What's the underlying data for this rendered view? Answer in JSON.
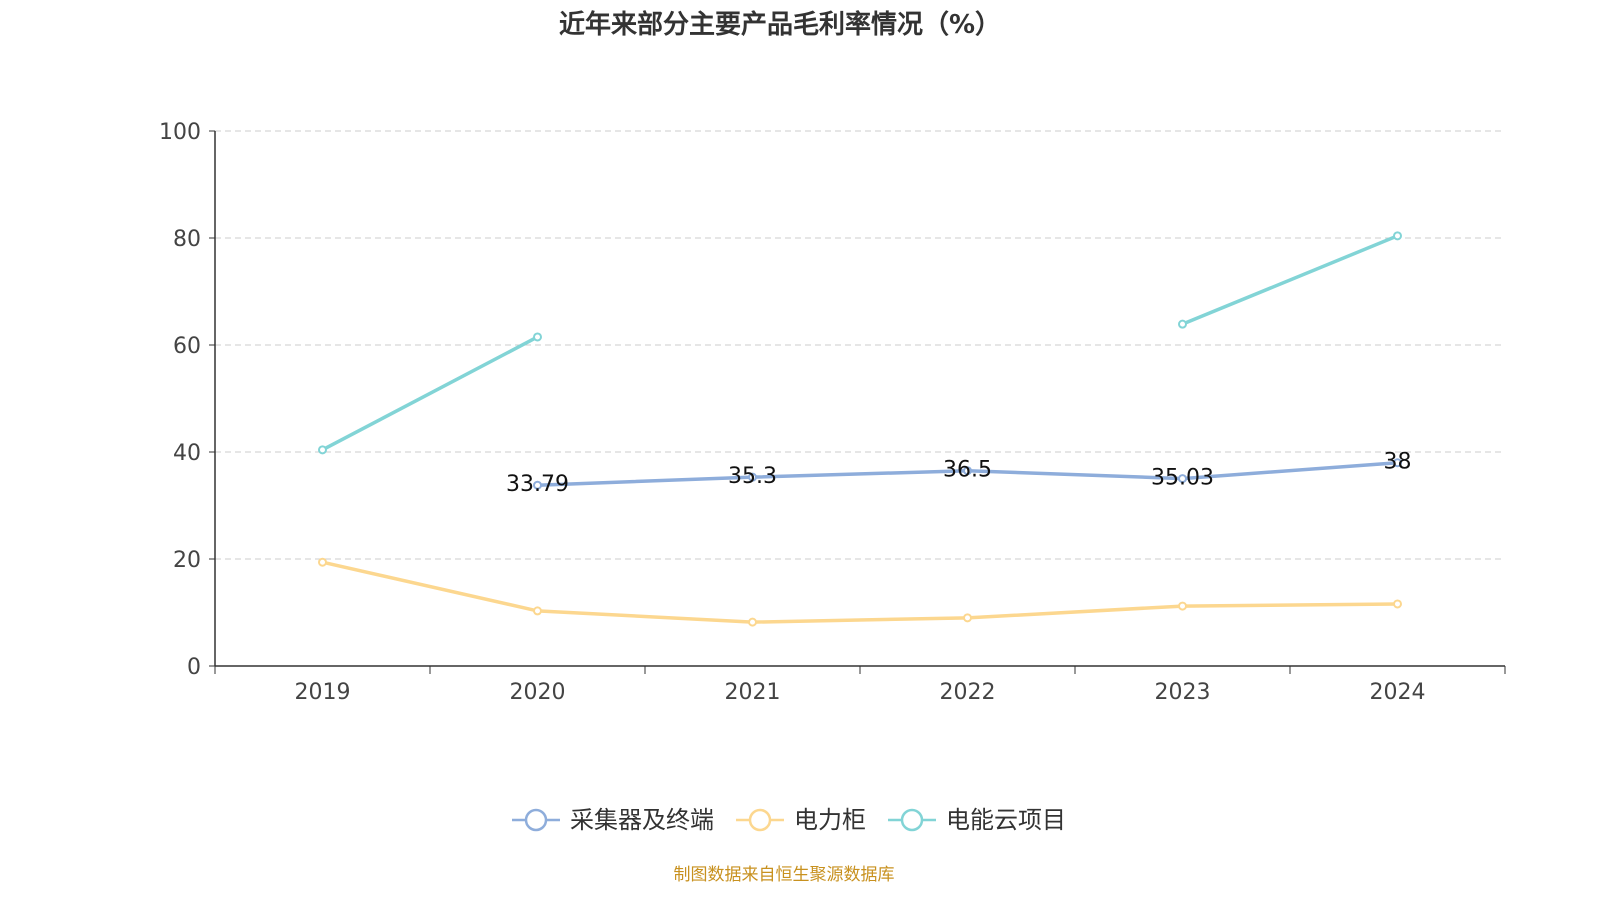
{
  "chart_data": {
    "type": "line",
    "title": "近年来部分主要产品毛利率情况（%）",
    "categories": [
      "2019",
      "2020",
      "2021",
      "2022",
      "2023",
      "2024"
    ],
    "ylim": [
      0,
      100
    ],
    "yticks": [
      "0",
      "20",
      "40",
      "60",
      "80",
      "100"
    ],
    "grid": true,
    "legend_position": "bottom",
    "series": [
      {
        "name": "采集器及终端",
        "color": "#8eaddb",
        "values": [
          null,
          33.79,
          35.3,
          36.5,
          35.03,
          38
        ],
        "labels": [
          "",
          "33.79",
          "35.3",
          "36.5",
          "35.03",
          "38"
        ]
      },
      {
        "name": "电力柜",
        "color": "#fcd78f",
        "values": [
          19.4,
          10.3,
          8.2,
          9.0,
          11.2,
          11.6
        ]
      },
      {
        "name": "电能云项目",
        "color": "#82d4d6",
        "values": [
          40.4,
          61.5,
          null,
          null,
          63.9,
          80.4
        ]
      }
    ]
  },
  "source": "制图数据来自恒生聚源数据库"
}
